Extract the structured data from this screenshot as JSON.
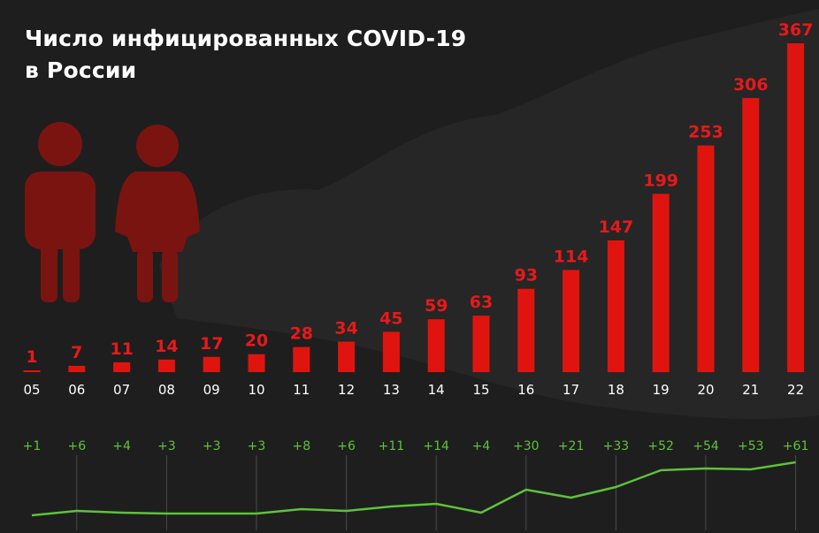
{
  "title": {
    "line1": "Число инфицированных COVID-19",
    "line2": "в России"
  },
  "colors": {
    "background": "#1e1e1e",
    "bar": "#e0140f",
    "bar_label": "#e8191a",
    "axis_label": "#ffffff",
    "increment": "#5ec23a",
    "people_icon": "#7a1410"
  },
  "icons": [
    "male-person-icon",
    "female-person-icon"
  ],
  "chart_data": [
    {
      "type": "bar",
      "title": "Число инфицированных COVID-19 в России",
      "categories": [
        "05",
        "06",
        "07",
        "08",
        "09",
        "10",
        "11",
        "12",
        "13",
        "14",
        "15",
        "16",
        "17",
        "18",
        "19",
        "20",
        "21",
        "22"
      ],
      "values": [
        1,
        7,
        11,
        14,
        17,
        20,
        28,
        34,
        45,
        59,
        63,
        93,
        114,
        147,
        199,
        253,
        306,
        367
      ],
      "ylim": [
        0,
        367
      ],
      "data_labels": true
    },
    {
      "type": "line",
      "categories": [
        "05",
        "06",
        "07",
        "08",
        "09",
        "10",
        "11",
        "12",
        "13",
        "14",
        "15",
        "16",
        "17",
        "18",
        "19",
        "20",
        "21",
        "22"
      ],
      "values": [
        1,
        6,
        4,
        3,
        3,
        3,
        8,
        6,
        11,
        14,
        4,
        30,
        21,
        33,
        52,
        54,
        53,
        61
      ],
      "labels": [
        "+1",
        "+6",
        "+4",
        "+3",
        "+3",
        "+3",
        "+8",
        "+6",
        "+11",
        "+14",
        "+4",
        "+30",
        "+21",
        "+33",
        "+52",
        "+54",
        "+53",
        "+61"
      ]
    }
  ]
}
